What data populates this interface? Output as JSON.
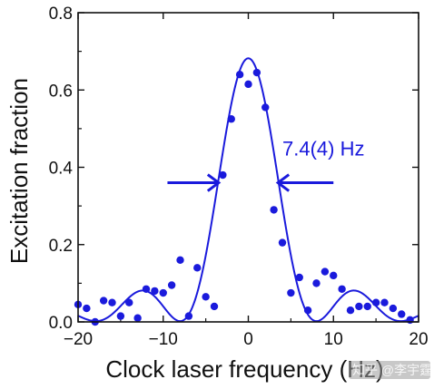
{
  "chart_data": {
    "type": "scatter",
    "xlabel": "Clock laser frequency (Hz)",
    "ylabel": "Excitation fraction",
    "xlim": [
      -20,
      20
    ],
    "ylim": [
      0,
      0.8
    ],
    "xticks": [
      -20,
      -10,
      0,
      10,
      20
    ],
    "yticks": [
      0.0,
      0.2,
      0.4,
      0.6,
      0.8
    ],
    "xtick_labels": [
      "−20",
      "−10",
      "0",
      "10",
      "20"
    ],
    "ytick_labels": [
      "0.0",
      "0.2",
      "0.4",
      "0.6",
      "0.8"
    ],
    "grid": false,
    "legend": "none",
    "series": [
      {
        "kind": "points",
        "color": "#1a1adc",
        "x": [
          -20,
          -19,
          -18,
          -17,
          -16,
          -15,
          -14,
          -13,
          -12,
          -11,
          -10,
          -9,
          -8,
          -7,
          -6,
          -5,
          -4,
          -3,
          -2,
          -1,
          0,
          1,
          2,
          3,
          4,
          5,
          6,
          7,
          8,
          9,
          10,
          11,
          12,
          13,
          14,
          15,
          16,
          17,
          18,
          19
        ],
        "y": [
          0.045,
          0.035,
          0.0,
          0.055,
          0.05,
          0.015,
          0.05,
          0.01,
          0.085,
          0.08,
          0.075,
          0.095,
          0.16,
          0.015,
          0.14,
          0.065,
          0.04,
          0.38,
          0.525,
          0.64,
          0.615,
          0.645,
          0.555,
          0.29,
          0.205,
          0.075,
          0.115,
          0.03,
          0.1,
          0.13,
          0.12,
          0.085,
          0.03,
          0.04,
          0.04,
          0.05,
          0.05,
          0.035,
          0.02,
          0.005
        ]
      },
      {
        "kind": "fit-line",
        "color": "#1a1adc",
        "center": 0,
        "amplitude": 0.68,
        "fwhm": 7.4,
        "baseline": 0.002
      }
    ],
    "annotations": [
      {
        "text": "7.4(4) Hz",
        "anchor_x": 4,
        "anchor_y": 0.43
      }
    ]
  },
  "watermark": {
    "text": "知乎 @李宇霆频弹"
  }
}
